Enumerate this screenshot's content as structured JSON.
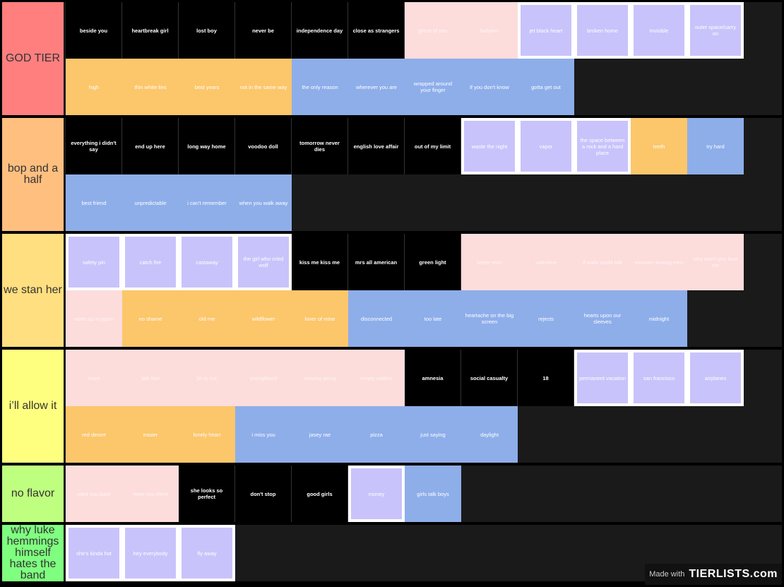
{
  "tiers": [
    {
      "label": "GOD TIER",
      "color": "#ff7f7f",
      "items": [
        {
          "t": "beside you",
          "c": "black"
        },
        {
          "t": "heartbreak girl",
          "c": "black"
        },
        {
          "t": "lost boy",
          "c": "black"
        },
        {
          "t": "never be",
          "c": "black"
        },
        {
          "t": "independence day",
          "c": "black"
        },
        {
          "t": "close as strangers",
          "c": "black"
        },
        {
          "t": "ghost of you",
          "c": "pink"
        },
        {
          "t": "babylon",
          "c": "pink"
        },
        {
          "t": "jet black heart",
          "c": "purple"
        },
        {
          "t": "broken home",
          "c": "purple"
        },
        {
          "t": "invisible",
          "c": "purple"
        },
        {
          "t": "outer space/carry on",
          "c": "purple"
        },
        {
          "t": "high",
          "c": "orange"
        },
        {
          "t": "thin white lies",
          "c": "orange"
        },
        {
          "t": "best years",
          "c": "orange"
        },
        {
          "t": "not in the same way",
          "c": "orange"
        },
        {
          "t": "the only reason",
          "c": "blue"
        },
        {
          "t": "wherever you are",
          "c": "blue"
        },
        {
          "t": "wrapped around your finger",
          "c": "blue"
        },
        {
          "t": "if you don't know",
          "c": "blue"
        },
        {
          "t": "gotta get out",
          "c": "blue"
        }
      ]
    },
    {
      "label": "bop and a half",
      "color": "#ffbf7f",
      "items": [
        {
          "t": "everything i didn't say",
          "c": "black"
        },
        {
          "t": "end up here",
          "c": "black"
        },
        {
          "t": "long way home",
          "c": "black"
        },
        {
          "t": "voodoo doll",
          "c": "black"
        },
        {
          "t": "tomorrow never dies",
          "c": "black"
        },
        {
          "t": "english love affair",
          "c": "black"
        },
        {
          "t": "out of my limit",
          "c": "black"
        },
        {
          "t": "waste the night",
          "c": "purple"
        },
        {
          "t": "vapor",
          "c": "purple"
        },
        {
          "t": "the space between a rock and a hard place",
          "c": "purple"
        },
        {
          "t": "teeth",
          "c": "orange"
        },
        {
          "t": "try hard",
          "c": "blue"
        },
        {
          "t": "best friend",
          "c": "blue"
        },
        {
          "t": "unpredictable",
          "c": "blue"
        },
        {
          "t": "i can't remember",
          "c": "blue"
        },
        {
          "t": "when you walk away",
          "c": "blue"
        }
      ]
    },
    {
      "label": "we stan her",
      "color": "#ffdf7f",
      "items": [
        {
          "t": "safety pin",
          "c": "purple"
        },
        {
          "t": "catch fire",
          "c": "purple"
        },
        {
          "t": "castaway",
          "c": "purple"
        },
        {
          "t": "the girl who cried wolf",
          "c": "purple"
        },
        {
          "t": "kiss me kiss me",
          "c": "black"
        },
        {
          "t": "mrs all american",
          "c": "black"
        },
        {
          "t": "green light",
          "c": "black"
        },
        {
          "t": "better man",
          "c": "pink"
        },
        {
          "t": "valentine",
          "c": "pink"
        },
        {
          "t": "if walls could talk",
          "c": "pink"
        },
        {
          "t": "monster among men",
          "c": "pink"
        },
        {
          "t": "why won't you love me",
          "c": "pink"
        },
        {
          "t": "woke up in japan",
          "c": "pink"
        },
        {
          "t": "no shame",
          "c": "orange"
        },
        {
          "t": "old me",
          "c": "orange"
        },
        {
          "t": "wildflower",
          "c": "orange"
        },
        {
          "t": "lover of mine",
          "c": "orange"
        },
        {
          "t": "disconnected",
          "c": "blue"
        },
        {
          "t": "too late",
          "c": "blue"
        },
        {
          "t": "heartache on the big screen",
          "c": "blue"
        },
        {
          "t": "rejects",
          "c": "blue"
        },
        {
          "t": "hearts upon our sleeves",
          "c": "blue"
        },
        {
          "t": "midnight",
          "c": "blue"
        }
      ]
    },
    {
      "label": "i’ll allow it",
      "color": "#ffff7f",
      "items": [
        {
          "t": "more",
          "c": "pink"
        },
        {
          "t": "talk fast",
          "c": "pink"
        },
        {
          "t": "lie to me",
          "c": "pink"
        },
        {
          "t": "youngblood",
          "c": "pink"
        },
        {
          "t": "moving along",
          "c": "pink"
        },
        {
          "t": "empty wallets",
          "c": "pink"
        },
        {
          "t": "amnesia",
          "c": "black"
        },
        {
          "t": "social casualty",
          "c": "black"
        },
        {
          "t": "18",
          "c": "black"
        },
        {
          "t": "permanent vacation",
          "c": "purple"
        },
        {
          "t": "san francisco",
          "c": "purple"
        },
        {
          "t": "airplanes",
          "c": "purple"
        },
        {
          "t": "red desert",
          "c": "orange"
        },
        {
          "t": "easier",
          "c": "orange"
        },
        {
          "t": "lonely heart",
          "c": "orange"
        },
        {
          "t": "i miss you",
          "c": "blue"
        },
        {
          "t": "jasey rae",
          "c": "blue"
        },
        {
          "t": "pizza",
          "c": "blue"
        },
        {
          "t": "just saying",
          "c": "blue"
        },
        {
          "t": "daylight",
          "c": "blue"
        }
      ]
    },
    {
      "label": "no flavor",
      "color": "#bfff7f",
      "items": [
        {
          "t": "want you back",
          "c": "pink"
        },
        {
          "t": "meet you there",
          "c": "pink"
        },
        {
          "t": "she looks so perfect",
          "c": "black"
        },
        {
          "t": "don't stop",
          "c": "black"
        },
        {
          "t": "good girls",
          "c": "black"
        },
        {
          "t": "money",
          "c": "purple"
        },
        {
          "t": "girls talk boys",
          "c": "blue"
        }
      ]
    },
    {
      "label": "why luke hemmings himself hates the band",
      "color": "#7fff7f",
      "items": [
        {
          "t": "she's kinda hot",
          "c": "purple"
        },
        {
          "t": "hey everybody",
          "c": "purple"
        },
        {
          "t": "fly away",
          "c": "purple"
        }
      ]
    }
  ],
  "watermark": {
    "prefix": "Made with",
    "brand": "TIERLISTS.com"
  }
}
